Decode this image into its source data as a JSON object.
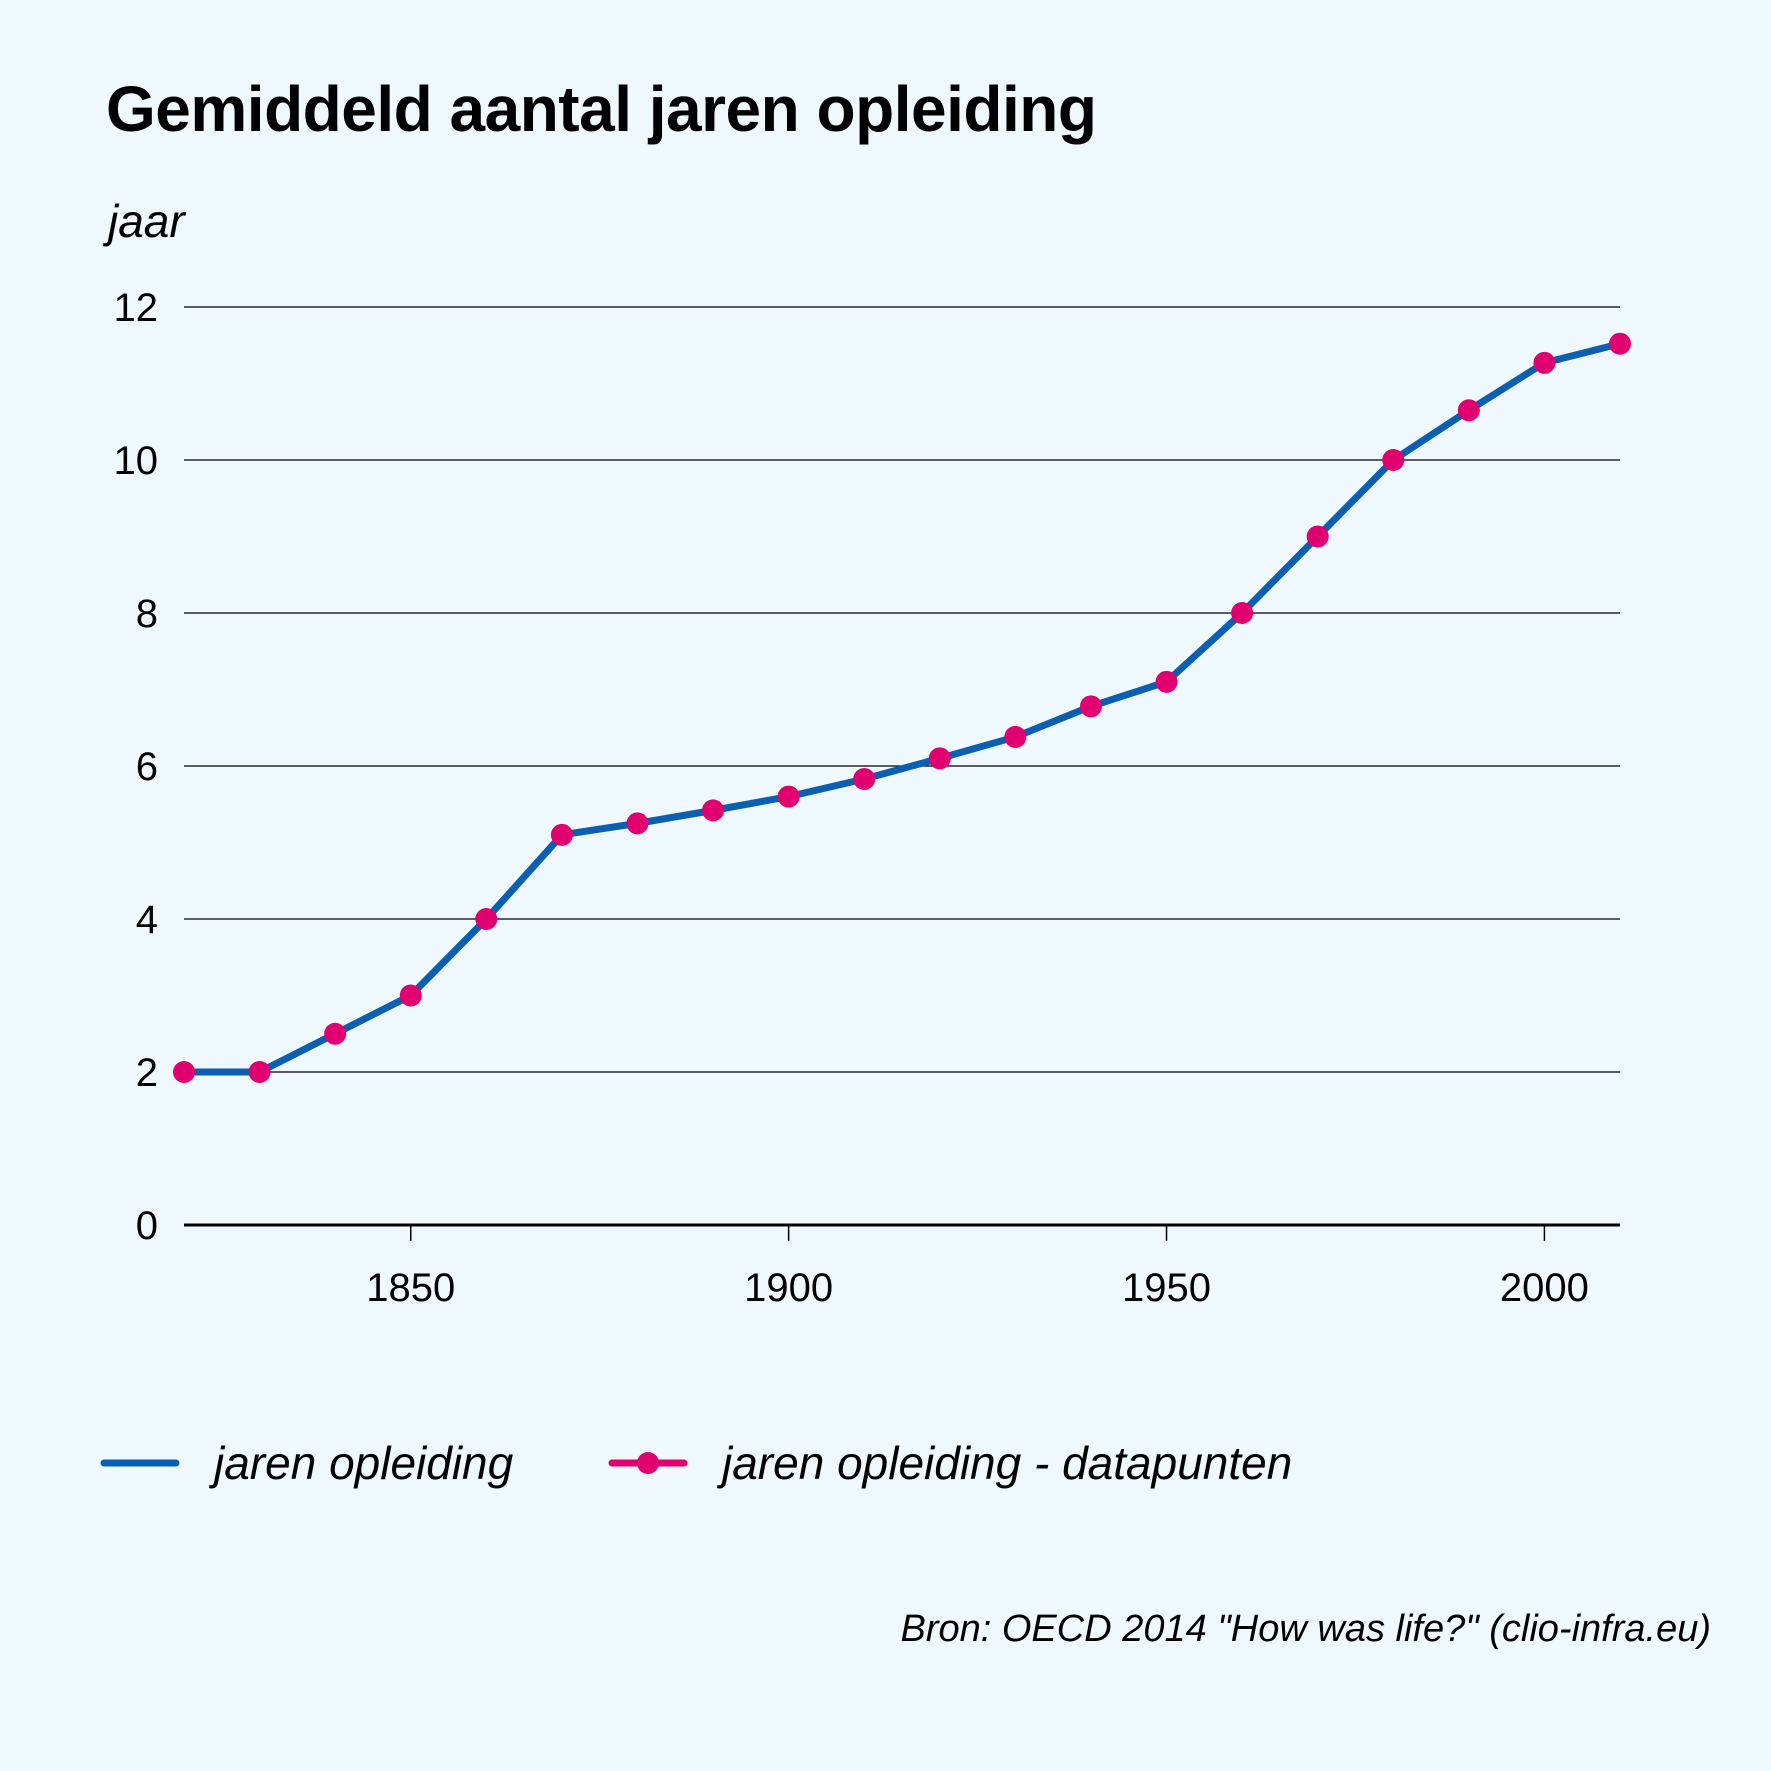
{
  "title": "Gemiddeld aantal jaren opleiding",
  "y_unit_label": "jaar",
  "source": "Bron: OECD 2014 \"How was life?\" (clio-infra.eu)",
  "colors": {
    "background": "#eef8fd",
    "line": "#0a5fb0",
    "points": "#e0006f",
    "gridlines": "#000000"
  },
  "chart_data": {
    "type": "line",
    "title": "Gemiddeld aantal jaren opleiding",
    "xlabel": "",
    "ylabel": "jaar",
    "xlim": [
      1820,
      2010
    ],
    "ylim": [
      0,
      12
    ],
    "grid": true,
    "x_ticks": [
      1850,
      1900,
      1950,
      2000
    ],
    "x_tick_labels": [
      "1850",
      "1900",
      "1950",
      "2000"
    ],
    "y_ticks": [
      0,
      2,
      4,
      6,
      8,
      10,
      12
    ],
    "y_tick_labels": [
      "0",
      "2",
      "4",
      "6",
      "8",
      "10",
      "12"
    ],
    "legend_position": "bottom",
    "series": [
      {
        "name": "jaren opleiding",
        "kind": "line",
        "x": [
          1820,
          1830,
          1840,
          1850,
          1860,
          1870,
          1880,
          1890,
          1900,
          1910,
          1920,
          1930,
          1940,
          1950,
          1960,
          1970,
          1980,
          1990,
          2000,
          2010
        ],
        "values": [
          2.0,
          2.0,
          2.5,
          3.0,
          4.0,
          5.1,
          5.25,
          5.42,
          5.6,
          5.83,
          6.1,
          6.38,
          6.78,
          7.1,
          8.0,
          9.0,
          10.0,
          10.65,
          11.27,
          11.52
        ]
      },
      {
        "name": "jaren opleiding - datapunten",
        "kind": "points",
        "x": [
          1820,
          1830,
          1840,
          1850,
          1860,
          1870,
          1880,
          1890,
          1900,
          1910,
          1920,
          1930,
          1940,
          1950,
          1960,
          1970,
          1980,
          1990,
          2000,
          2010
        ],
        "values": [
          2.0,
          2.0,
          2.5,
          3.0,
          4.0,
          5.1,
          5.25,
          5.42,
          5.6,
          5.83,
          6.1,
          6.38,
          6.78,
          7.1,
          8.0,
          9.0,
          10.0,
          10.65,
          11.27,
          11.52
        ]
      }
    ]
  }
}
